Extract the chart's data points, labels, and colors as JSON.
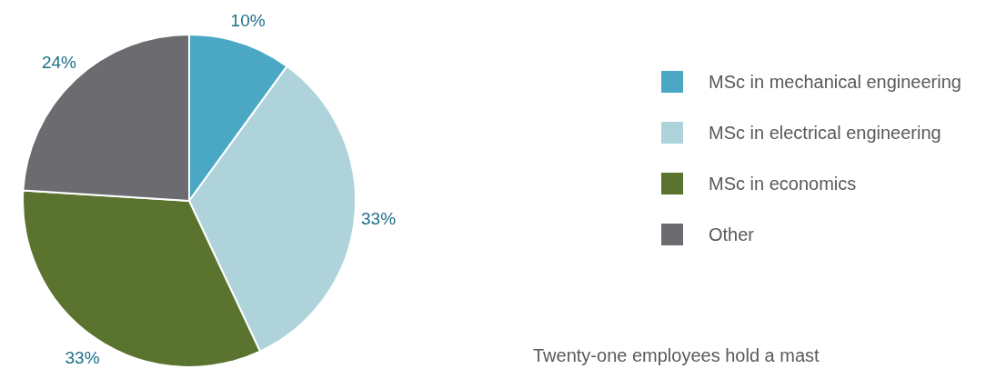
{
  "chart_data": {
    "type": "pie",
    "categories": [
      "MSc in mechanical engineering",
      "MSc in electrical engineering",
      "MSc in economics",
      "Other"
    ],
    "values": [
      10,
      33,
      33,
      24
    ],
    "colors": [
      "#4aa8c4",
      "#afd3da",
      "#5a7430",
      "#6c6b70"
    ],
    "legend": "right",
    "value_labels": [
      "10%",
      "33%",
      "33%",
      "24%"
    ],
    "annotations": [
      "Twenty-one employees hold a mast"
    ]
  }
}
